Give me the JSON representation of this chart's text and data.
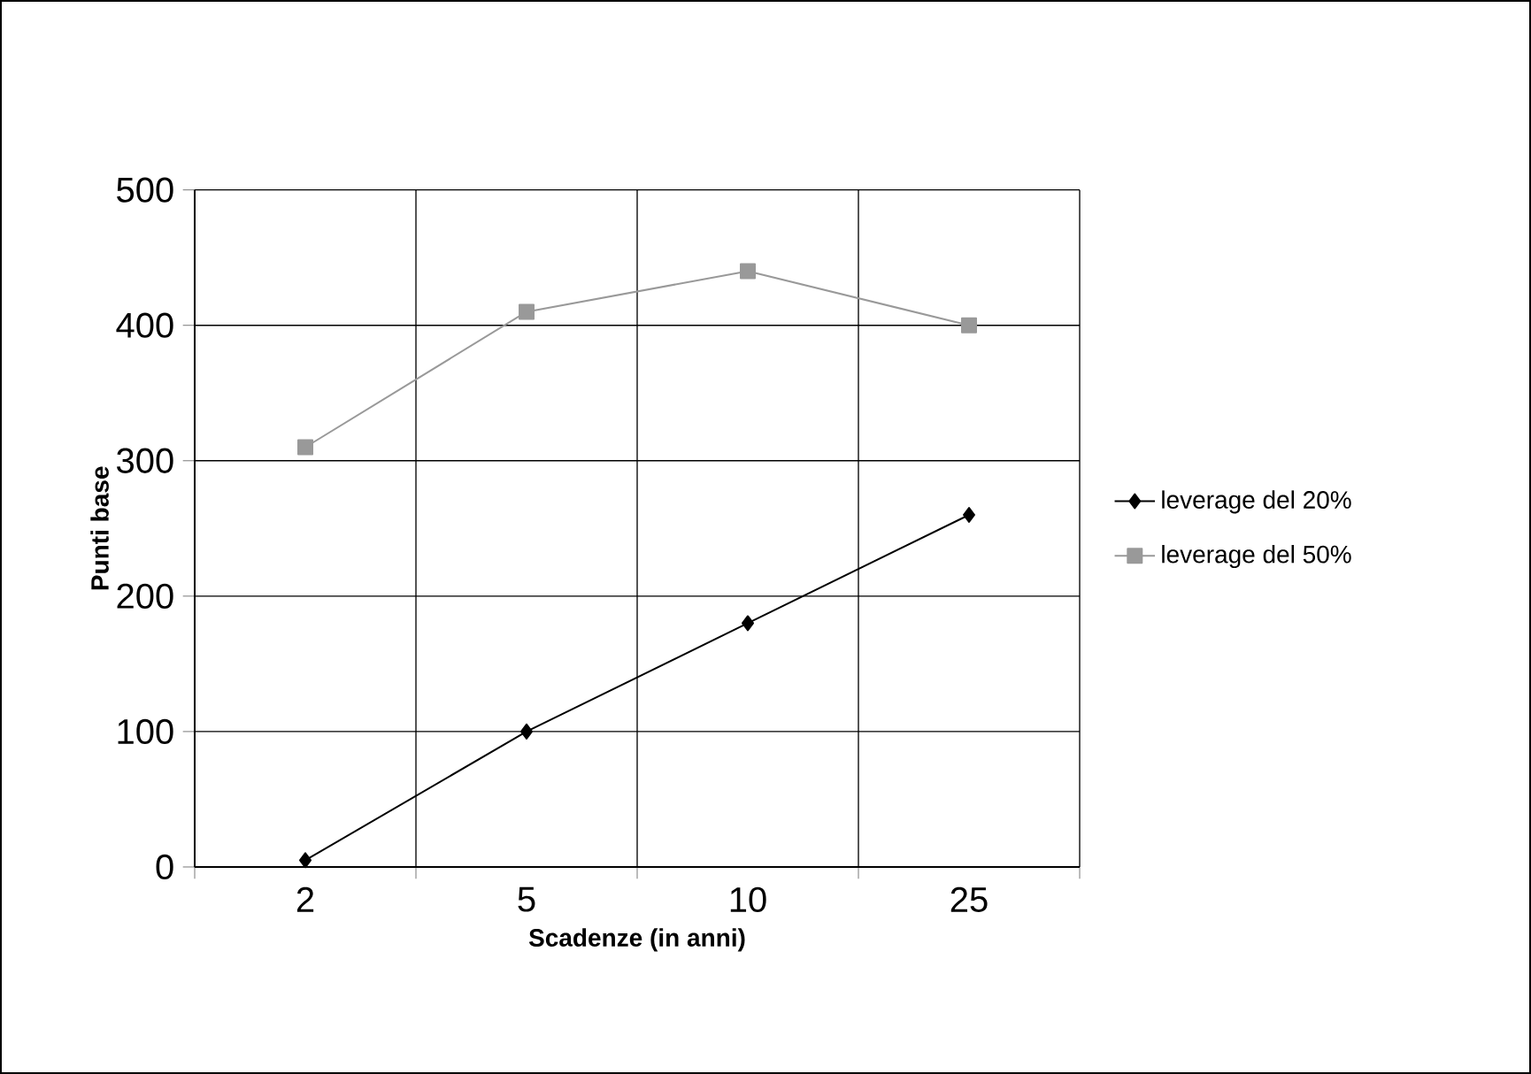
{
  "chart_data": {
    "type": "line",
    "xlabel": "Scadenze (in anni)",
    "ylabel": "Punti base",
    "categories": [
      "2",
      "5",
      "10",
      "25"
    ],
    "series": [
      {
        "name": "leverage del 20%",
        "color": "#000000",
        "marker": "diamond",
        "values": [
          5,
          100,
          180,
          260
        ]
      },
      {
        "name": "leverage del 50%",
        "color": "#999999",
        "marker": "square",
        "values": [
          310,
          410,
          440,
          400
        ]
      }
    ],
    "ylim": [
      0,
      500
    ],
    "yticks": [
      0,
      100,
      200,
      300,
      400,
      500
    ],
    "grid": true,
    "legend": "right"
  }
}
